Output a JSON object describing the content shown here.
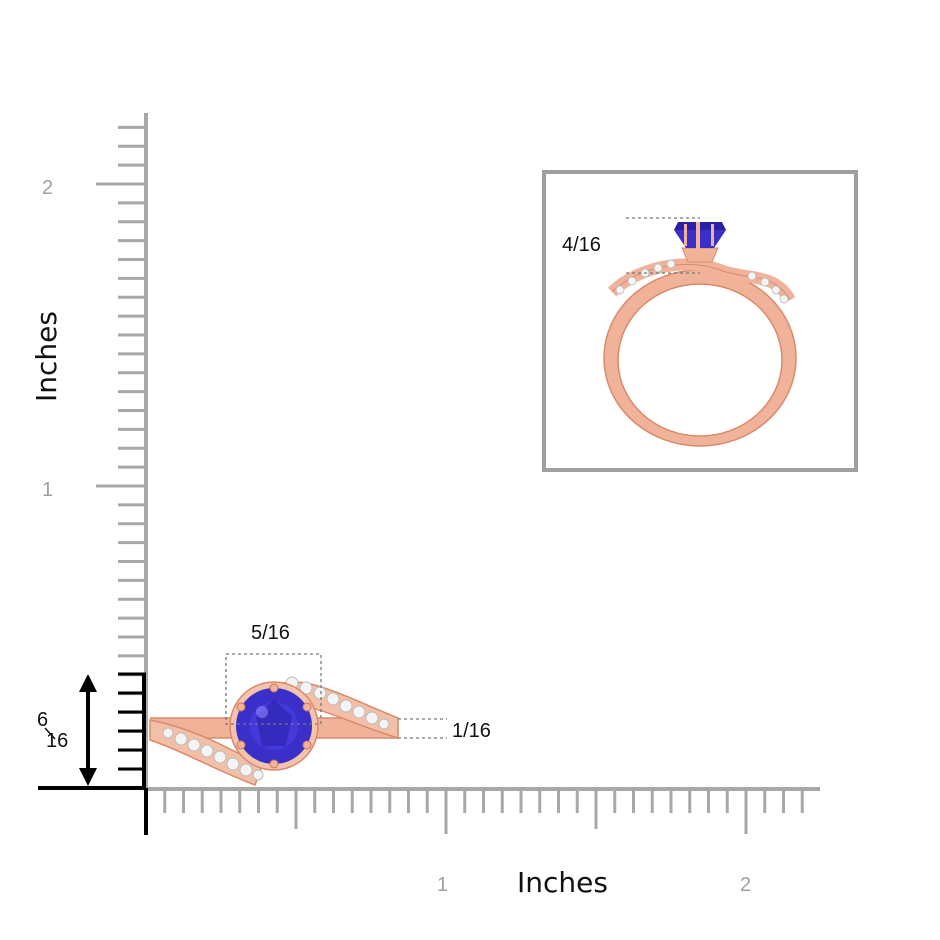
{
  "axes": {
    "x_title": "Inches",
    "y_title": "Inches",
    "x_tick_labels": [
      "1",
      "2"
    ],
    "y_tick_labels": [
      "1",
      "2"
    ]
  },
  "dimensions": {
    "width": "5/16",
    "height_numerator": "6",
    "height_denominator": "16",
    "band": "1/16",
    "side_height": "4/16"
  },
  "colors": {
    "ruler": "#a8a8a8",
    "axis": "#000000",
    "metal": "#f0b39a",
    "metal_dark": "#d98a6c",
    "gem": "#3b2fc9",
    "gem_dark": "#1c1480",
    "diamond": "#f4f4f4",
    "inset_border": "#a0a0a0"
  },
  "icons": {
    "height_arrow": "double-arrow-vertical-icon"
  }
}
